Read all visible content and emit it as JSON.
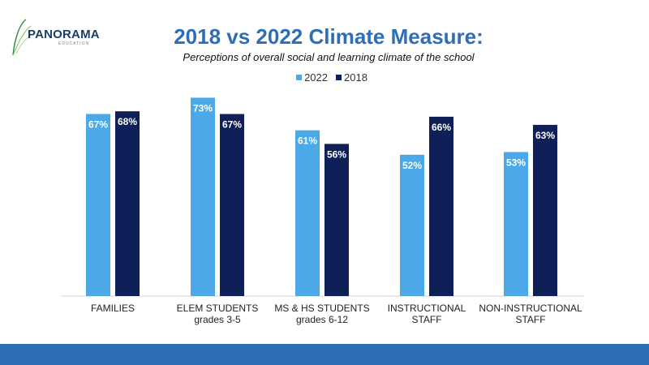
{
  "header": {
    "logo_text": "PANORAMA",
    "logo_sub": "EDUCATION",
    "title": "2018 vs 2022 Climate Measure:",
    "subtitle": "Perceptions of overall social and learning climate of the school"
  },
  "colors": {
    "series_2022": "#4aa9e6",
    "series_2018": "#0f1f58",
    "title": "#2f6db5",
    "footer": "#2c6eb5"
  },
  "chart_data": {
    "type": "bar",
    "title": "2018 vs 2022 Climate Measure:",
    "subtitle": "Perceptions of overall social and learning climate of the school",
    "legend_position": "top-center",
    "grid": false,
    "ylim": [
      0,
      80
    ],
    "categories": [
      [
        "FAMILIES"
      ],
      [
        "ELEM STUDENTS",
        "grades 3-5"
      ],
      [
        "MS & HS STUDENTS",
        "grades 6-12"
      ],
      [
        "INSTRUCTIONAL",
        "STAFF"
      ],
      [
        "NON-INSTRUCTIONAL",
        "STAFF"
      ]
    ],
    "series": [
      {
        "name": "2022",
        "values": [
          67,
          73,
          61,
          52,
          53
        ],
        "labels": [
          "67%",
          "73%",
          "61%",
          "52%",
          "53%"
        ]
      },
      {
        "name": "2018",
        "values": [
          68,
          67,
          56,
          66,
          63
        ],
        "labels": [
          "68%",
          "67%",
          "56%",
          "66%",
          "63%"
        ]
      }
    ]
  }
}
